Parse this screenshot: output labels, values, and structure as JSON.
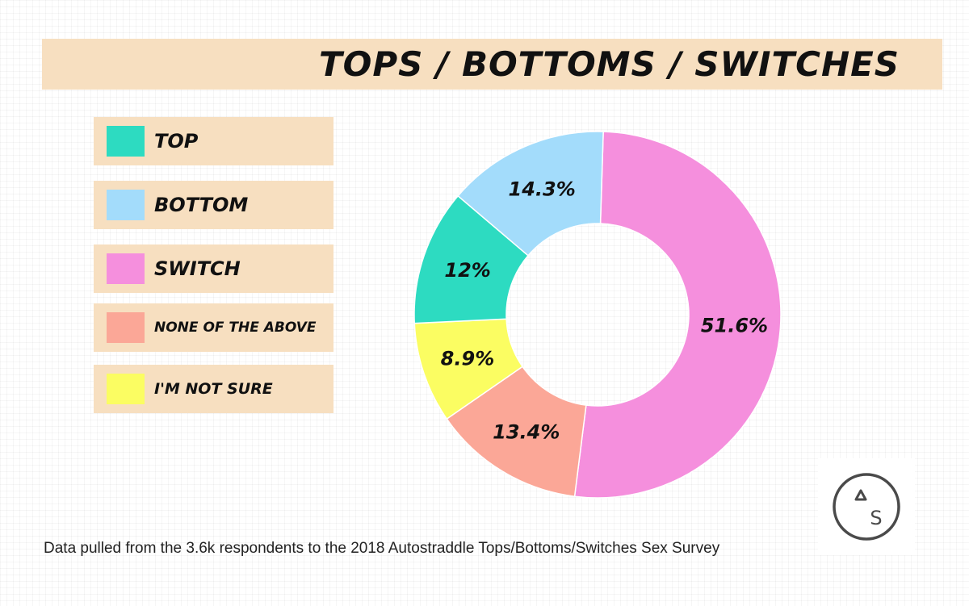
{
  "chart_data": {
    "type": "pie",
    "donut": true,
    "title": "TOPS / BOTTOMS / SWITCHES",
    "categories": [
      "TOP",
      "BOTTOM",
      "SWITCH",
      "NONE OF THE ABOVE",
      "I'M NOT SURE"
    ],
    "values": [
      12,
      14.3,
      51.6,
      13.4,
      8.9
    ],
    "value_labels": [
      "12%",
      "14.3%",
      "51.6%",
      "13.4%",
      "8.9%"
    ],
    "colors": [
      "#2ddbc1",
      "#a3dcfb",
      "#f58fdd",
      "#fba797",
      "#fbfd62"
    ],
    "legend_placement": "left",
    "note": "Data pulled from the 3.6k respondents to the 2018 Autostraddle Tops/Bottoms/Switches Sex Survey"
  },
  "logo": {
    "name": "autostraddle-logo",
    "letters": "ΔS"
  }
}
